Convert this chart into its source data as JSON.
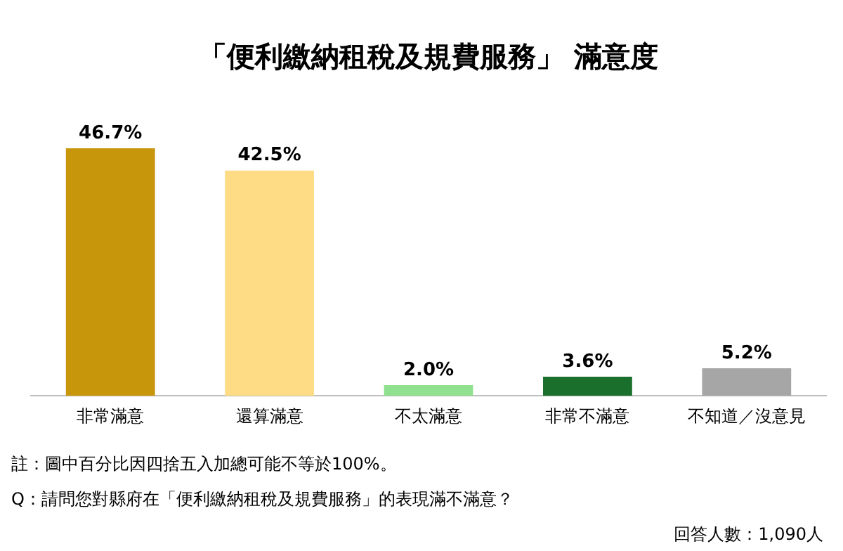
{
  "chart_data": {
    "type": "bar",
    "title": "「便利繳納租稅及規費服務」 滿意度",
    "categories": [
      "非常滿意",
      "還算滿意",
      "不太滿意",
      "非常不滿意",
      "不知道／沒意見"
    ],
    "values": [
      46.7,
      42.5,
      2.0,
      3.6,
      5.2
    ],
    "value_labels": [
      "46.7%",
      "42.5%",
      "2.0%",
      "3.6%",
      "5.2%"
    ],
    "colors": [
      "#c8960a",
      "#fddc85",
      "#8fe08f",
      "#1b6f2c",
      "#a6a6a6"
    ],
    "grid": false,
    "legend": false,
    "annotations": [
      "註：圖中百分比因四捨五入加總可能不等於100%。",
      "Q：請問您對縣府在「便利繳納租稅及規費服務」的表現滿不滿意？",
      "回答人數：1,090人"
    ]
  }
}
